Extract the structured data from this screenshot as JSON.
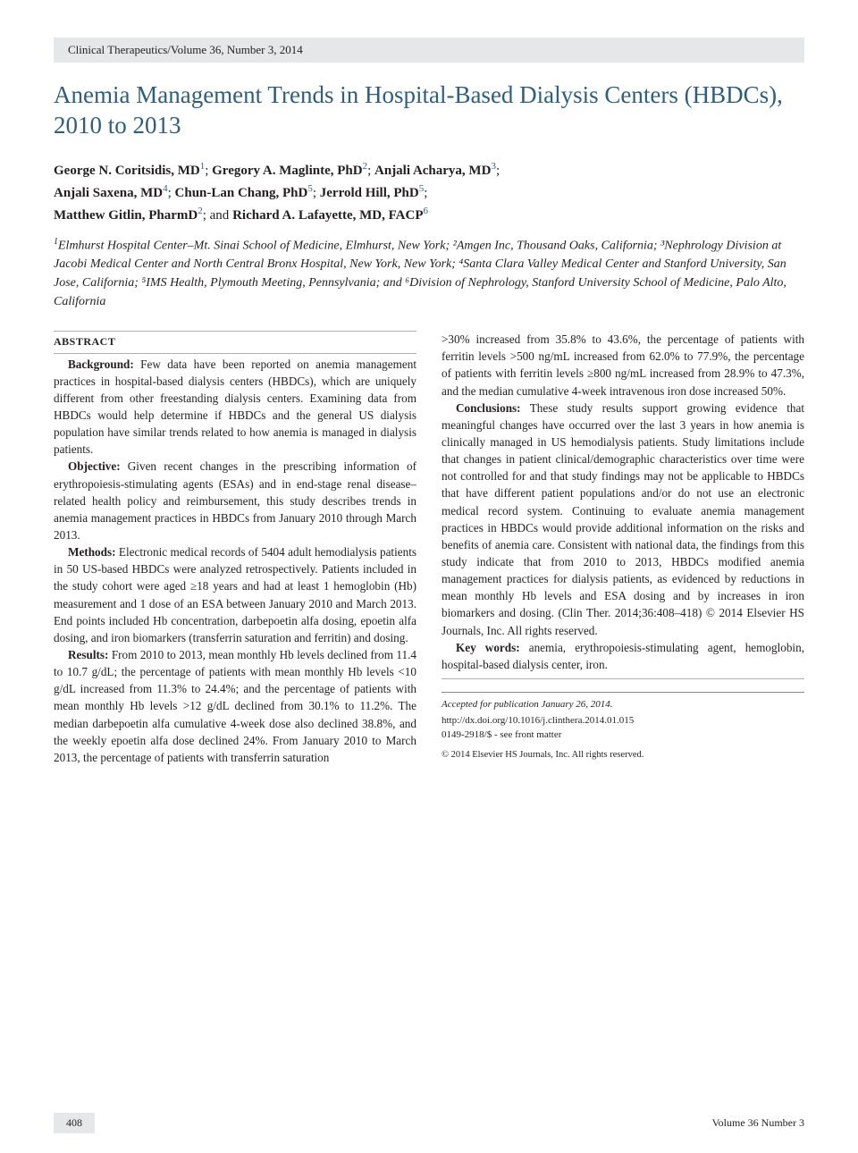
{
  "journal_header": "Clinical Therapeutics/Volume 36, Number 3, 2014",
  "title": "Anemia Management Trends in Hospital-Based Dialysis Centers (HBDCs), 2010 to 2013",
  "authors": [
    {
      "name": "George N. Coritsidis, MD",
      "sup": "1"
    },
    {
      "name": "Gregory A. Maglinte, PhD",
      "sup": "2"
    },
    {
      "name": "Anjali Acharya, MD",
      "sup": "3"
    },
    {
      "name": "Anjali Saxena, MD",
      "sup": "4"
    },
    {
      "name": "Chun-Lan Chang, PhD",
      "sup": "5"
    },
    {
      "name": "Jerrold Hill, PhD",
      "sup": "5"
    },
    {
      "name": "Matthew Gitlin, PharmD",
      "sup": "2"
    },
    {
      "name": "Richard A. Lafayette, MD, FACP",
      "sup": "6"
    }
  ],
  "affiliations_text": "Elmhurst Hospital Center–Mt. Sinai School of Medicine, Elmhurst, New York; ²Amgen Inc, Thousand Oaks, California; ³Nephrology Division at Jacobi Medical Center and North Central Bronx Hospital, New York, New York; ⁴Santa Clara Valley Medical Center and Stanford University, San Jose, California; ⁵IMS Health, Plymouth Meeting, Pennsylvania; and ⁶Division of Nephrology, Stanford University School of Medicine, Palo Alto, California",
  "abstract_heading": "ABSTRACT",
  "sections": {
    "background_label": "Background:",
    "background_text": " Few data have been reported on anemia management practices in hospital-based dialysis centers (HBDCs), which are uniquely different from other freestanding dialysis centers. Examining data from HBDCs would help determine if HBDCs and the general US dialysis population have similar trends related to how anemia is managed in dialysis patients.",
    "objective_label": "Objective:",
    "objective_text": " Given recent changes in the prescribing information of erythropoiesis-stimulating agents (ESAs) and in end-stage renal disease–related health policy and reimbursement, this study describes trends in anemia management practices in HBDCs from January 2010 through March 2013.",
    "methods_label": "Methods:",
    "methods_text": " Electronic medical records of 5404 adult hemodialysis patients in 50 US-based HBDCs were analyzed retrospectively. Patients included in the study cohort were aged ≥18 years and had at least 1 hemoglobin (Hb) measurement and 1 dose of an ESA between January 2010 and March 2013. End points included Hb concentration, darbepoetin alfa dosing, epoetin alfa dosing, and iron biomarkers (transferrin saturation and ferritin) and dosing.",
    "results_label": "Results:",
    "results_text_left": " From 2010 to 2013, mean monthly Hb levels declined from 11.4 to 10.7 g/dL; the percentage of patients with mean monthly Hb levels <10 g/dL increased from 11.3% to 24.4%; and the percentage of patients with mean monthly Hb levels >12 g/dL declined from 30.1% to 11.2%. The median darbepoetin alfa cumulative 4-week dose also declined 38.8%, and the weekly epoetin alfa dose declined 24%. From January 2010 to March 2013, the percentage of patients with transferrin saturation",
    "results_text_right": ">30% increased from 35.8% to 43.6%, the percentage of patients with ferritin levels >500 ng/mL increased from 62.0% to 77.9%, the percentage of patients with ferritin levels ≥800 ng/mL increased from 28.9% to 47.3%, and the median cumulative 4-week intravenous iron dose increased 50%.",
    "conclusions_label": "Conclusions:",
    "conclusions_text": " These study results support growing evidence that meaningful changes have occurred over the last 3 years in how anemia is clinically managed in US hemodialysis patients. Study limitations include that changes in patient clinical/demographic characteristics over time were not controlled for and that study findings may not be applicable to HBDCs that have different patient populations and/or do not use an electronic medical record system. Continuing to evaluate anemia management practices in HBDCs would provide additional information on the risks and benefits of anemia care. Consistent with national data, the findings from this study indicate that from 2010 to 2013, HBDCs modified anemia management practices for dialysis patients, as evidenced by reductions in mean monthly Hb levels and ESA dosing and by increases in iron biomarkers and dosing. (Clin Ther. 2014;36:408–418) © 2014 Elsevier HS Journals, Inc. All rights reserved.",
    "keywords_label": "Key words:",
    "keywords_text": " anemia, erythropoiesis-stimulating agent, hemoglobin, hospital-based dialysis center, iron."
  },
  "footer_meta": {
    "accepted": "Accepted for publication January 26, 2014.",
    "doi": "http://dx.doi.org/10.1016/j.clinthera.2014.01.015",
    "issn": "0149-2918/$ - see front matter",
    "copyright": "© 2014 Elsevier HS Journals, Inc. All rights reserved."
  },
  "page_number": "408",
  "volume_footer": "Volume 36 Number 3",
  "colors": {
    "title_color": "#2c5f7f",
    "header_bg": "#e6e7e8",
    "text_color": "#231f20",
    "sup_color": "#2c5f7f"
  },
  "typography": {
    "title_fontsize": 27,
    "body_fontsize": 13.2,
    "author_fontsize": 15,
    "affiliation_fontsize": 14,
    "footer_fontsize": 11
  }
}
